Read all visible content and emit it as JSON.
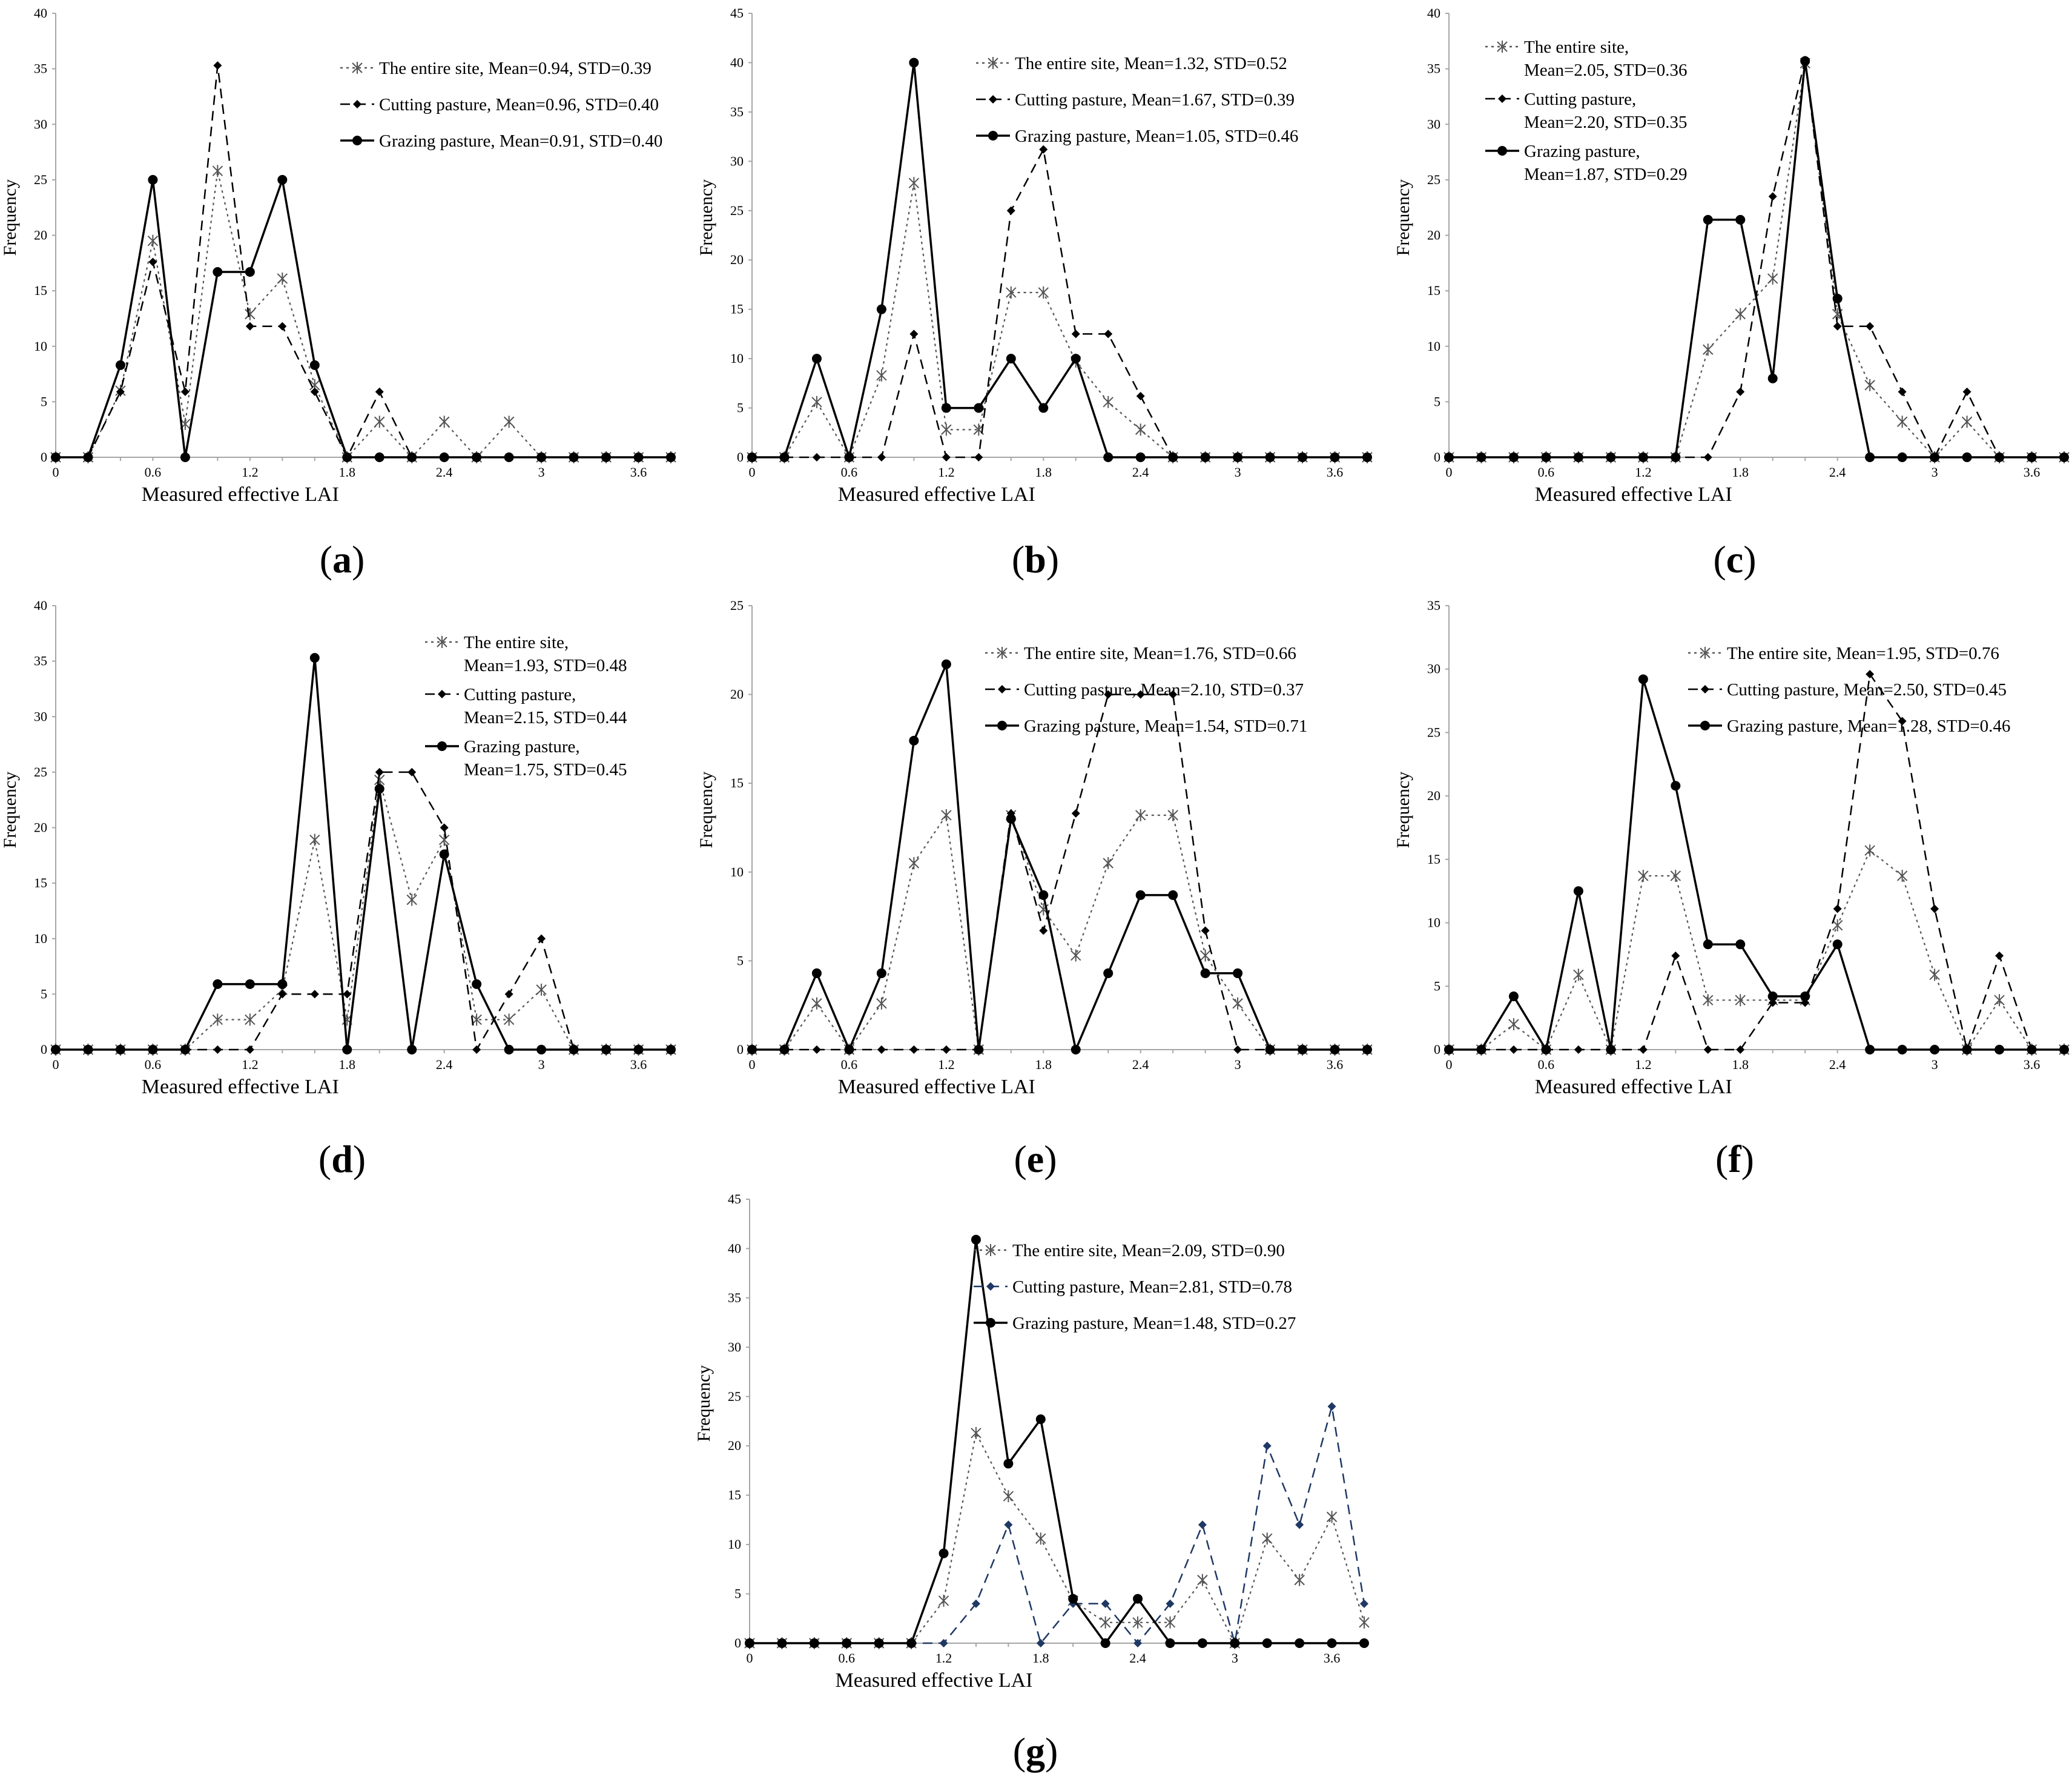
{
  "chart_data": [
    {
      "panel_label": "a",
      "type": "line",
      "x": [
        0,
        0.2,
        0.4,
        0.6,
        0.8,
        1.0,
        1.2,
        1.4,
        1.6,
        1.8,
        2.0,
        2.2,
        2.4,
        2.6,
        2.8,
        3.0,
        3.2,
        3.4,
        3.6,
        3.8
      ],
      "xticks": [
        "0",
        "0.6",
        "1.2",
        "1.8",
        "2.4",
        "3",
        "3.6"
      ],
      "yticks": [
        "0",
        "5",
        "10",
        "15",
        "20",
        "25",
        "30",
        "35",
        "40"
      ],
      "ylim": [
        0,
        40
      ],
      "xlim": [
        0,
        3.8
      ],
      "xlabel": "Measured effective LAI",
      "ylabel": "Frequency",
      "legend_layout": "single",
      "series": [
        {
          "name": "The entire site, Mean=0.94, STD=0.39",
          "values": [
            0,
            0,
            6,
            19.5,
            3,
            25.8,
            12.9,
            16.1,
            6.5,
            0,
            3.2,
            0,
            3.2,
            0,
            3.2,
            0,
            0,
            0,
            0,
            0
          ]
        },
        {
          "name": "Cutting pasture, Mean=0.96, STD=0.40",
          "values": [
            0,
            0,
            5.9,
            17.6,
            5.9,
            35.3,
            11.8,
            11.8,
            5.9,
            0,
            5.9,
            0,
            0,
            0,
            0,
            0,
            0,
            0,
            0,
            0
          ]
        },
        {
          "name": "Grazing pasture, Mean=0.91, STD=0.40",
          "values": [
            0,
            0,
            8.3,
            25,
            0,
            16.7,
            16.7,
            25,
            8.3,
            0,
            0,
            0,
            0,
            0,
            0,
            0,
            0,
            0,
            0,
            0
          ]
        }
      ]
    },
    {
      "panel_label": "b",
      "type": "line",
      "x": [
        0,
        0.2,
        0.4,
        0.6,
        0.8,
        1.0,
        1.2,
        1.4,
        1.6,
        1.8,
        2.0,
        2.2,
        2.4,
        2.6,
        2.8,
        3.0,
        3.2,
        3.4,
        3.6,
        3.8
      ],
      "xticks": [
        "0",
        "0.6",
        "1.2",
        "1.8",
        "2.4",
        "3",
        "3.6"
      ],
      "yticks": [
        "0",
        "5",
        "10",
        "15",
        "20",
        "25",
        "30",
        "35",
        "40",
        "45"
      ],
      "ylim": [
        0,
        45
      ],
      "xlim": [
        0,
        3.8
      ],
      "xlabel": "Measured effective LAI",
      "ylabel": "Frequency",
      "legend_layout": "single",
      "series": [
        {
          "name": "The entire site, Mean=1.32, STD=0.52",
          "values": [
            0,
            0,
            5.6,
            0,
            8.3,
            27.8,
            2.8,
            2.8,
            16.7,
            16.7,
            9.7,
            5.6,
            2.8,
            0,
            0,
            0,
            0,
            0,
            0,
            0
          ]
        },
        {
          "name": "Cutting pasture, Mean=1.67, STD=0.39",
          "values": [
            0,
            0,
            0,
            0,
            0,
            12.5,
            0,
            0,
            25,
            31.2,
            12.5,
            12.5,
            6.2,
            0,
            0,
            0,
            0,
            0,
            0,
            0
          ]
        },
        {
          "name": "Grazing pasture, Mean=1.05, STD=0.46",
          "values": [
            0,
            0,
            10,
            0,
            15,
            40,
            5,
            5,
            10,
            5,
            10,
            0,
            0,
            0,
            0,
            0,
            0,
            0,
            0,
            0
          ]
        }
      ]
    },
    {
      "panel_label": "c",
      "type": "line",
      "x": [
        0,
        0.2,
        0.4,
        0.6,
        0.8,
        1.0,
        1.2,
        1.4,
        1.6,
        1.8,
        2.0,
        2.2,
        2.4,
        2.6,
        2.8,
        3.0,
        3.2,
        3.4,
        3.6,
        3.8
      ],
      "xticks": [
        "0",
        "0.6",
        "1.2",
        "1.8",
        "2.4",
        "3",
        "3.6"
      ],
      "yticks": [
        "0",
        "5",
        "10",
        "15",
        "20",
        "25",
        "30",
        "35",
        "40"
      ],
      "ylim": [
        0,
        40
      ],
      "xlim": [
        0,
        3.8
      ],
      "xlabel": "Measured effective LAI",
      "ylabel": "Frequency",
      "legend_layout": "wrapped",
      "series": [
        {
          "name": "The entire site,",
          "name2": "Mean=2.05, STD=0.36",
          "values": [
            0,
            0,
            0,
            0,
            0,
            0,
            0,
            0,
            9.7,
            12.9,
            16.1,
            35.5,
            12.9,
            6.5,
            3.2,
            0,
            3.2,
            0,
            0,
            0
          ]
        },
        {
          "name": "Cutting pasture,",
          "name2": "Mean=2.20, STD=0.35",
          "values": [
            0,
            0,
            0,
            0,
            0,
            0,
            0,
            0,
            0,
            5.9,
            23.5,
            35.8,
            11.8,
            11.8,
            5.9,
            0,
            5.9,
            0,
            0,
            0
          ]
        },
        {
          "name": "Grazing pasture,",
          "name2": "Mean=1.87, STD=0.29",
          "values": [
            0,
            0,
            0,
            0,
            0,
            0,
            0,
            0,
            21.4,
            21.4,
            7.1,
            35.7,
            14.3,
            0,
            0,
            0,
            0,
            0,
            0,
            0
          ]
        }
      ]
    },
    {
      "panel_label": "d",
      "type": "line",
      "x": [
        0,
        0.2,
        0.4,
        0.6,
        0.8,
        1.0,
        1.2,
        1.4,
        1.6,
        1.8,
        2.0,
        2.2,
        2.4,
        2.6,
        2.8,
        3.0,
        3.2,
        3.4,
        3.6,
        3.8
      ],
      "xticks": [
        "0",
        "0.6",
        "1.2",
        "1.8",
        "2.4",
        "3",
        "3.6"
      ],
      "yticks": [
        "0",
        "5",
        "10",
        "15",
        "20",
        "25",
        "30",
        "35",
        "40"
      ],
      "ylim": [
        0,
        40
      ],
      "xlim": [
        0,
        3.8
      ],
      "xlabel": "Measured effective LAI",
      "ylabel": "Frequency",
      "legend_layout": "wrapped",
      "series": [
        {
          "name": "The entire site,",
          "name2": "Mean=1.93, STD=0.48",
          "values": [
            0,
            0,
            0,
            0,
            0,
            2.7,
            2.7,
            5.4,
            18.9,
            2.7,
            24.3,
            13.5,
            18.9,
            2.7,
            2.7,
            5.4,
            0,
            0,
            0,
            0
          ]
        },
        {
          "name": "Cutting pasture,",
          "name2": "Mean=2.15, STD=0.44",
          "values": [
            0,
            0,
            0,
            0,
            0,
            0,
            0,
            5,
            5,
            5,
            25,
            25,
            20,
            0,
            5,
            10,
            0,
            0,
            0,
            0
          ]
        },
        {
          "name": "Grazing pasture,",
          "name2": "Mean=1.75, STD=0.45",
          "values": [
            0,
            0,
            0,
            0,
            0,
            5.9,
            5.9,
            5.9,
            35.3,
            0,
            23.5,
            0,
            17.6,
            5.9,
            0,
            0,
            0,
            0,
            0,
            0
          ]
        }
      ]
    },
    {
      "panel_label": "e",
      "type": "line",
      "x": [
        0,
        0.2,
        0.4,
        0.6,
        0.8,
        1.0,
        1.2,
        1.4,
        1.6,
        1.8,
        2.0,
        2.2,
        2.4,
        2.6,
        2.8,
        3.0,
        3.2,
        3.4,
        3.6,
        3.8
      ],
      "xticks": [
        "0",
        "0.6",
        "1.2",
        "1.8",
        "2.4",
        "3",
        "3.6"
      ],
      "yticks": [
        "0",
        "5",
        "10",
        "15",
        "20",
        "25"
      ],
      "ylim": [
        0,
        25
      ],
      "xlim": [
        0,
        3.8
      ],
      "xlabel": "Measured effective LAI",
      "ylabel": "Frequency",
      "legend_layout": "single",
      "series": [
        {
          "name": "The entire site, Mean=1.76, STD=0.66",
          "values": [
            0,
            0,
            2.6,
            0,
            2.6,
            10.5,
            13.2,
            0,
            13.2,
            7.9,
            5.3,
            10.5,
            13.2,
            13.2,
            5.3,
            2.6,
            0,
            0,
            0,
            0
          ]
        },
        {
          "name": "Cutting pasture, Mean=2.10, STD=0.37",
          "values": [
            0,
            0,
            0,
            0,
            0,
            0,
            0,
            0,
            13.3,
            6.7,
            13.3,
            20,
            20,
            20,
            6.7,
            0,
            0,
            0,
            0,
            0
          ]
        },
        {
          "name": "Grazing pasture, Mean=1.54, STD=0.71",
          "values": [
            0,
            0,
            4.3,
            0,
            4.3,
            17.4,
            21.7,
            0,
            13,
            8.7,
            0,
            4.3,
            8.7,
            8.7,
            4.3,
            4.3,
            0,
            0,
            0,
            0
          ]
        }
      ]
    },
    {
      "panel_label": "f",
      "type": "line",
      "x": [
        0,
        0.2,
        0.4,
        0.6,
        0.8,
        1.0,
        1.2,
        1.4,
        1.6,
        1.8,
        2.0,
        2.2,
        2.4,
        2.6,
        2.8,
        3.0,
        3.2,
        3.4,
        3.6,
        3.8
      ],
      "xticks": [
        "0",
        "0.6",
        "1.2",
        "1.8",
        "2.4",
        "3",
        "3.6"
      ],
      "yticks": [
        "0",
        "5",
        "10",
        "15",
        "20",
        "25",
        "30",
        "35"
      ],
      "ylim": [
        0,
        35
      ],
      "xlim": [
        0,
        3.8
      ],
      "xlabel": "Measured effective LAI",
      "ylabel": "Frequency",
      "legend_layout": "single",
      "series": [
        {
          "name": "The entire site, Mean=1.95, STD=0.76",
          "values": [
            0,
            0,
            2,
            0,
            5.9,
            0,
            13.7,
            13.7,
            3.9,
            3.9,
            3.9,
            3.9,
            9.8,
            15.7,
            13.7,
            5.9,
            0,
            3.9,
            0,
            0
          ]
        },
        {
          "name": "Cutting pasture, Mean=2.50, STD=0.45",
          "values": [
            0,
            0,
            0,
            0,
            0,
            0,
            0,
            7.4,
            0,
            0,
            3.7,
            3.7,
            11.1,
            29.6,
            25.9,
            11.1,
            0,
            7.4,
            0,
            0
          ]
        },
        {
          "name": "Grazing pasture, Mean=1.28, STD=0.46",
          "values": [
            0,
            0,
            4.2,
            0,
            12.5,
            0,
            29.2,
            20.8,
            8.3,
            8.3,
            4.2,
            4.2,
            8.3,
            0,
            0,
            0,
            0,
            0,
            0,
            0
          ]
        }
      ]
    },
    {
      "panel_label": "g",
      "type": "line",
      "x": [
        0,
        0.2,
        0.4,
        0.6,
        0.8,
        1.0,
        1.2,
        1.4,
        1.6,
        1.8,
        2.0,
        2.2,
        2.4,
        2.6,
        2.8,
        3.0,
        3.2,
        3.4,
        3.6,
        3.8
      ],
      "xticks": [
        "0",
        "0.6",
        "1.2",
        "1.8",
        "2.4",
        "3",
        "3.6"
      ],
      "yticks": [
        "0",
        "5",
        "10",
        "15",
        "20",
        "25",
        "30",
        "35",
        "40",
        "45"
      ],
      "ylim": [
        0,
        45
      ],
      "xlim": [
        0,
        3.8
      ],
      "xlabel": "Measured effective LAI",
      "ylabel": "Frequency",
      "legend_layout": "single",
      "series": [
        {
          "name": "The entire site, Mean=2.09, STD=0.90",
          "values": [
            0,
            0,
            0,
            0,
            0,
            0,
            4.3,
            21.3,
            14.9,
            10.6,
            4.3,
            2.1,
            2.1,
            2.1,
            6.4,
            0,
            10.6,
            6.4,
            12.8,
            2.1
          ]
        },
        {
          "name": "Cutting pasture, Mean=2.81, STD=0.78",
          "values": [
            0,
            0,
            0,
            0,
            0,
            0,
            0,
            4,
            12,
            0,
            4,
            4,
            0,
            4,
            12,
            0,
            20,
            12,
            24,
            4
          ]
        },
        {
          "name": "Grazing pasture, Mean=1.48, STD=0.27",
          "values": [
            0,
            0,
            0,
            0,
            0,
            0,
            9.1,
            40.9,
            18.2,
            22.7,
            4.5,
            0,
            4.5,
            0,
            0,
            0,
            0,
            0,
            0,
            0
          ]
        }
      ]
    }
  ],
  "colors": {
    "axis": "#a6a6a6",
    "series": [
      "#555555",
      "#000000",
      "#000000"
    ],
    "panel_g_cutting": "#1f3864"
  }
}
